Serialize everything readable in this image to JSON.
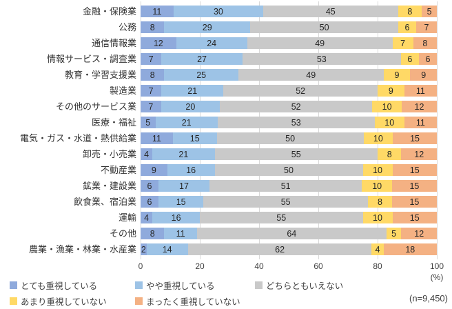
{
  "chart_data": {
    "type": "bar",
    "orientation": "horizontal",
    "stacked_percent": true,
    "title": "",
    "xlabel": "",
    "ylabel": "",
    "unit": "(%)",
    "sample_size_label": "(n=9,450)",
    "xlim": [
      0,
      100
    ],
    "x_ticks": [
      0,
      20,
      40,
      60,
      80,
      100
    ],
    "grid": true,
    "legend_position": "bottom",
    "categories": [
      "金融・保険業",
      "公務",
      "通信情報業",
      "情報サービス・調査業",
      "教育・学習支援業",
      "製造業",
      "その他のサービス業",
      "医療・福祉",
      "電気・ガス・水道・熱供給業",
      "卸売・小売業",
      "不動産業",
      "鉱業・建設業",
      "飲食業、宿泊業",
      "運輸",
      "その他",
      "農業・漁業・林業・水産業"
    ],
    "series": [
      {
        "name": "とても重視している",
        "color": "#8FAADC",
        "values": [
          11,
          8,
          12,
          7,
          8,
          7,
          7,
          5,
          11,
          4,
          9,
          6,
          6,
          4,
          8,
          2
        ]
      },
      {
        "name": "やや重視している",
        "color": "#9DC3E6",
        "values": [
          30,
          29,
          24,
          27,
          25,
          21,
          20,
          21,
          15,
          21,
          16,
          17,
          15,
          16,
          11,
          14
        ]
      },
      {
        "name": "どちらともいえない",
        "color": "#C9C9C9",
        "values": [
          45,
          50,
          49,
          53,
          49,
          52,
          52,
          53,
          50,
          55,
          50,
          51,
          55,
          55,
          64,
          62
        ]
      },
      {
        "name": "あまり重視していない",
        "color": "#FFD966",
        "values": [
          8,
          6,
          7,
          6,
          9,
          9,
          10,
          10,
          10,
          8,
          10,
          10,
          8,
          10,
          5,
          4
        ]
      },
      {
        "name": "まったく重視していない",
        "color": "#F4B183",
        "values": [
          5,
          7,
          8,
          6,
          9,
          11,
          12,
          11,
          15,
          12,
          15,
          15,
          15,
          15,
          12,
          18
        ]
      }
    ],
    "colors": {
      "gridline": "#d9d9d9",
      "label_text": "#333333",
      "value_text": "#262626",
      "axis_text": "#404040"
    }
  }
}
